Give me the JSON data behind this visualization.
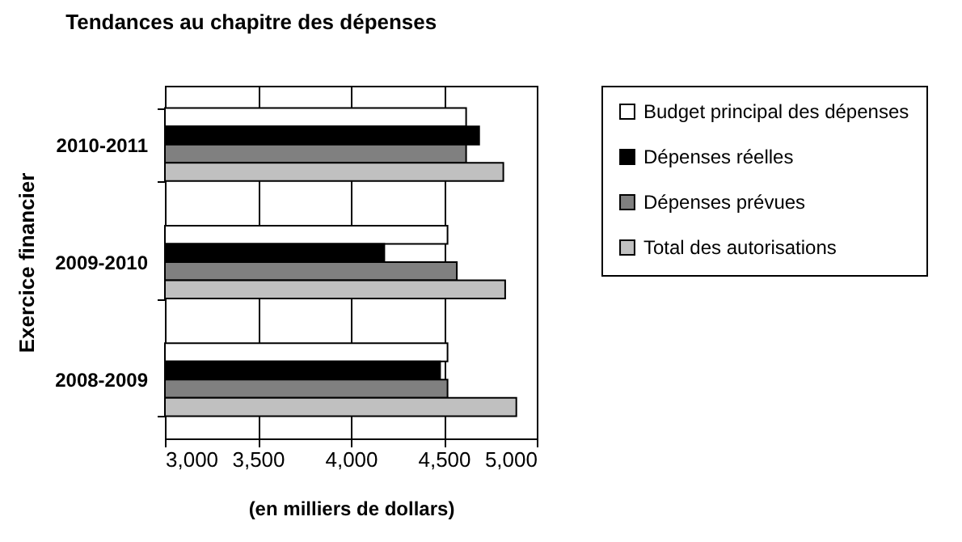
{
  "chart_data": {
    "type": "bar",
    "orientation": "horizontal",
    "title": "Tendances au chapitre des dépenses",
    "xlabel": "(en milliers de dollars)",
    "ylabel": "Exercice financier",
    "categories": [
      "2010-2011",
      "2009-2010",
      "2008-2009"
    ],
    "series": [
      {
        "name": "Budget principal des dépenses",
        "color": "#ffffff",
        "values": [
          4620,
          4520,
          4520
        ]
      },
      {
        "name": "Dépenses réelles",
        "color": "#000000",
        "values": [
          4690,
          4180,
          4480
        ]
      },
      {
        "name": "Dépenses prévues",
        "color": "#808080",
        "values": [
          4620,
          4570,
          4520
        ]
      },
      {
        "name": "Total des autorisations",
        "color": "#c0c0c0",
        "values": [
          4820,
          4830,
          4890
        ]
      }
    ],
    "xlim": [
      3000,
      5000
    ],
    "xticks": [
      {
        "value": 3000,
        "label": "3,000"
      },
      {
        "value": 3500,
        "label": "3,500"
      },
      {
        "value": 4000,
        "label": "4,000"
      },
      {
        "value": 4500,
        "label": "4,500"
      },
      {
        "value": 5000,
        "label": "5,000"
      }
    ],
    "grid": "x",
    "legend": "right"
  }
}
